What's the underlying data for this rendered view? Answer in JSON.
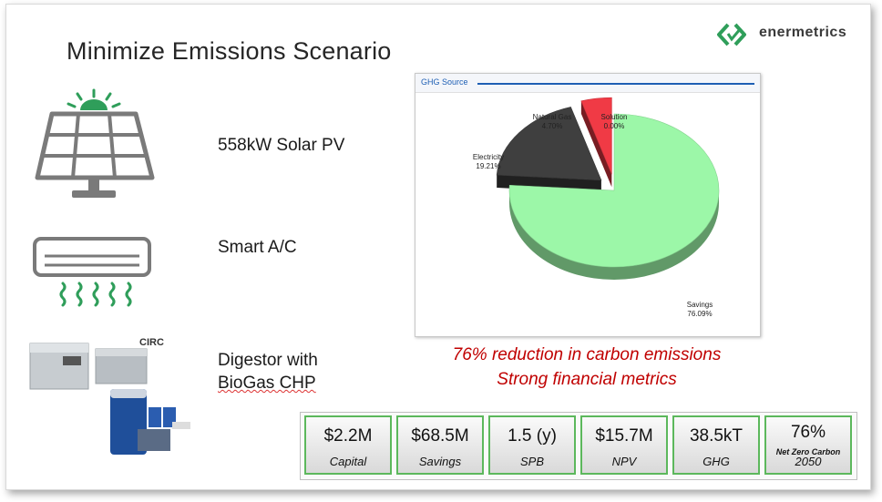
{
  "slide": {
    "title": "Minimize Emissions Scenario",
    "logo_text": "enermetrics"
  },
  "features": [
    {
      "text": "558kW Solar PV",
      "icon": "solar-panel-icon"
    },
    {
      "text": "Smart A/C",
      "icon": "air-conditioner-icon"
    },
    {
      "line1": "Digestor with",
      "line2": "BioGas CHP",
      "icon": "digestor-equipment-image"
    }
  ],
  "equipment_label": "CIRC",
  "chart_data": {
    "type": "pie",
    "title": "GHG Source",
    "slices": [
      {
        "label": "Savings",
        "percent_text": "76.09%",
        "value": 76.09,
        "color": "#9cf7a8"
      },
      {
        "label": "Electricity",
        "percent_text": "19.21%",
        "value": 19.21,
        "color": "#3f3f3f"
      },
      {
        "label": "Natural Gas",
        "percent_text": "4.70%",
        "value": 4.7,
        "color": "#f03a45"
      },
      {
        "label": "Solution",
        "percent_text": "0.00%",
        "value": 0.0,
        "color": "#cccccc"
      }
    ]
  },
  "headlines": {
    "line1": "76% reduction in carbon emissions",
    "line2": "Strong financial metrics"
  },
  "metrics": [
    {
      "value": "$2.2M",
      "label": "Capital"
    },
    {
      "value": "$68.5M",
      "label": "Savings"
    },
    {
      "value": "1.5 (y)",
      "label": "SPB"
    },
    {
      "value": "$15.7M",
      "label": "NPV"
    },
    {
      "value": "38.5kT",
      "label": "GHG"
    },
    {
      "value": "76%",
      "sub": "Net Zero Carbon",
      "label": "2050"
    }
  ],
  "colors": {
    "accent_green": "#2f9e5a",
    "icon_gray": "#7a7a7a",
    "headline_red": "#c00000",
    "metric_border": "#5cb85c"
  }
}
